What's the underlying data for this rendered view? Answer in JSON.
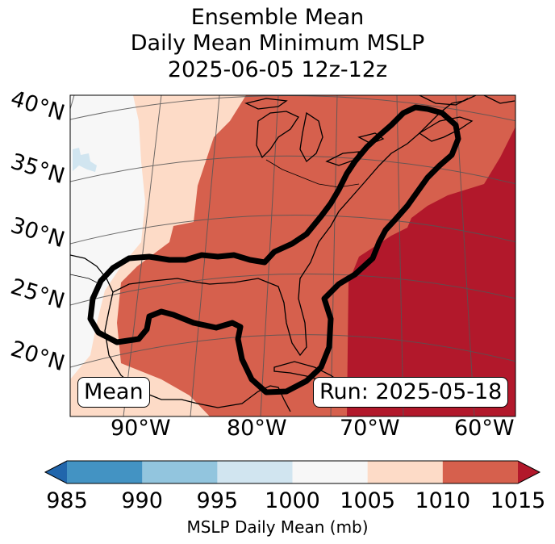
{
  "title": {
    "line1": "Ensemble Mean",
    "line2": "Daily Mean Minimum MSLP",
    "line3": "2025-06-05 12z-12z"
  },
  "map": {
    "latitude_labels": [
      "40°N",
      "35°N",
      "30°N",
      "25°N",
      "20°N"
    ],
    "longitude_labels": [
      "90°W",
      "80°W",
      "70°W",
      "60°W"
    ],
    "mean_label": "Mean",
    "run_label": "Run: 2025-05-18",
    "field_colors": {
      "below_1000": "#f7f7f7",
      "range_1000_1005": "#fddbc7",
      "range_1005_1010": "#d6604d",
      "range_1010_1015": "#b2182b",
      "low_spot": "#d1e5f0"
    }
  },
  "colorbar": {
    "ticks": [
      "985",
      "990",
      "995",
      "1000",
      "1005",
      "1010",
      "1015"
    ],
    "colors": [
      "#4393c3",
      "#92c5de",
      "#d1e5f0",
      "#f7f7f7",
      "#fddbc7",
      "#d6604d"
    ],
    "extend_low_color": "#2166ac",
    "extend_high_color": "#b2182b",
    "label": "MSLP Daily Mean (mb)"
  }
}
